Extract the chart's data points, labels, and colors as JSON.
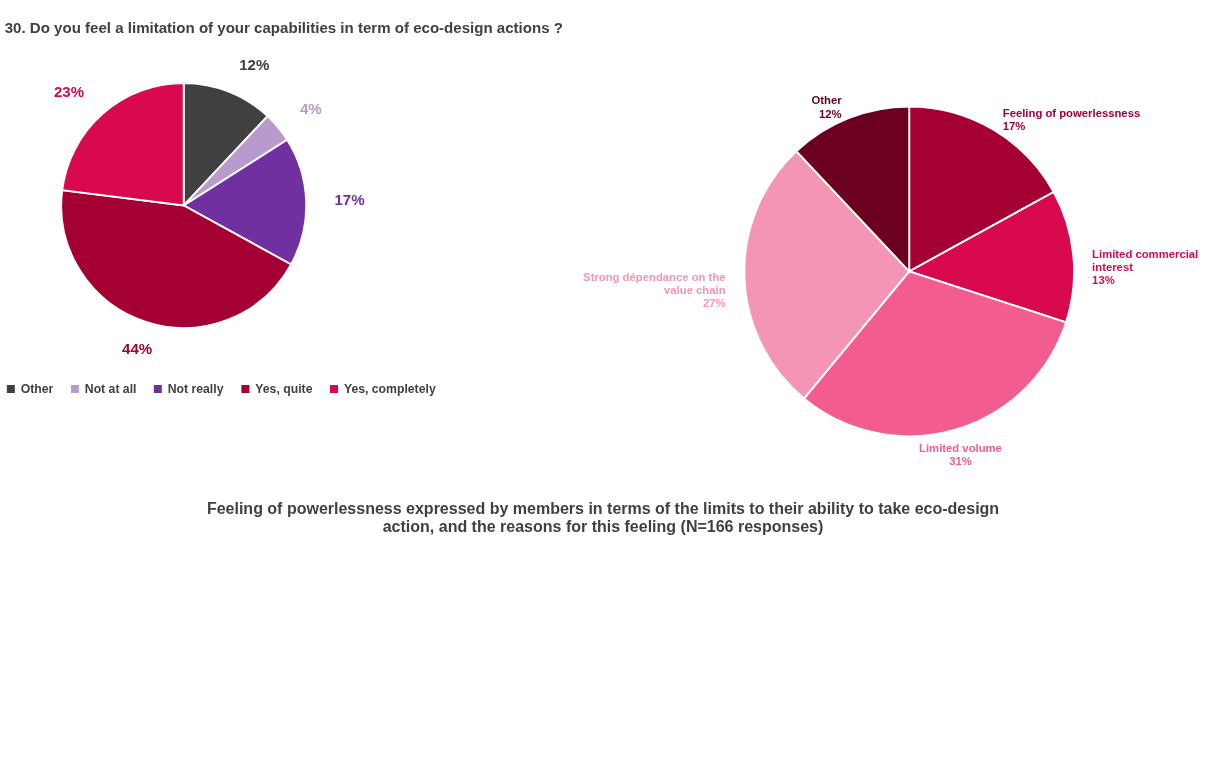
{
  "chart_data": [
    {
      "type": "pie",
      "title": "30. Do you feel a limitation of your capabilities in term of eco-design actions ?",
      "categories": [
        "Other",
        "Not at all",
        "Not really",
        "Yes, quite",
        "Yes, completely"
      ],
      "values": [
        12,
        4,
        17,
        44,
        23
      ],
      "colors": [
        "#404040",
        "#b89acc",
        "#7030a0",
        "#a50034",
        "#d80a4d"
      ],
      "value_labels": [
        "12%",
        "4%",
        "17%",
        "44%",
        "23%"
      ],
      "legend": "bottom"
    },
    {
      "type": "pie",
      "categories": [
        "Feeling of powerlessness",
        "Limited commercial interest",
        "Limited volume",
        "Strong dépendance on the value chain",
        "Other"
      ],
      "values": [
        17,
        13,
        31,
        27,
        12
      ],
      "colors": [
        "#a50034",
        "#d80a4d",
        "#f25c8f",
        "#f595b5",
        "#6b0020"
      ],
      "value_labels": [
        "17%",
        "13%",
        "31%",
        "27%",
        "12%"
      ],
      "annotations": [
        "Feeling of powerlessness expressed by members in terms of the limits to their ability to take eco-design action, and the reasons for this feeling (N=166 responses)"
      ]
    }
  ]
}
